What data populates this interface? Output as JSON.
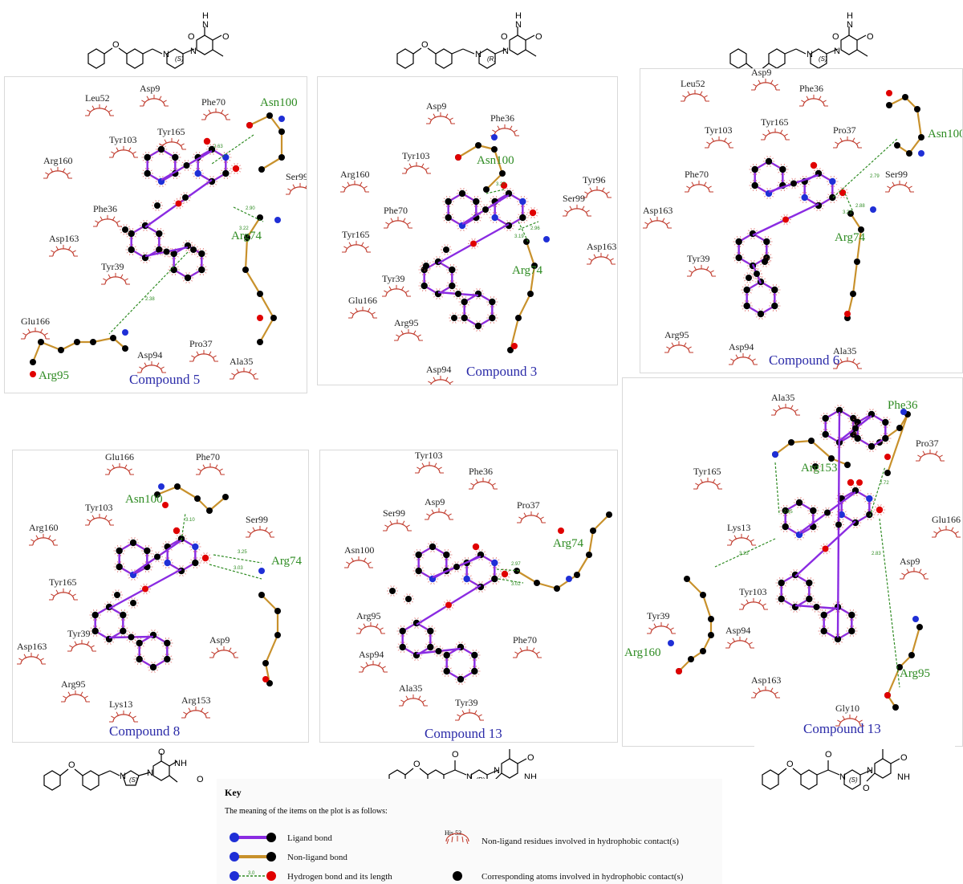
{
  "structures": [
    {
      "stereo": "(S)",
      "atoms": [
        "H",
        "N",
        "O",
        "O",
        "N",
        "N",
        "O"
      ]
    },
    {
      "stereo": "(R)",
      "atoms": [
        "H",
        "N",
        "O",
        "O",
        "N",
        "N",
        "O"
      ]
    },
    {
      "stereo": "(S)",
      "atoms": [
        "H",
        "N",
        "O",
        "O",
        "N",
        "N",
        "O"
      ]
    },
    {
      "stereo": "(S)",
      "atoms": [
        "O",
        "N",
        "N",
        "NH",
        "O",
        "O"
      ]
    },
    {
      "stereo": "(R)",
      "atoms": [
        "O",
        "N",
        "N",
        "NH",
        "O",
        "O",
        "O"
      ]
    },
    {
      "stereo": "(S)",
      "atoms": [
        "O",
        "N",
        "N",
        "NH",
        "O",
        "O",
        "O"
      ]
    }
  ],
  "panels": [
    {
      "compound": "Compound 5",
      "hbond_residues": [
        "Asn100",
        "Arg74",
        "Arg95"
      ],
      "hydrophobic_residues": [
        "Leu52",
        "Asp9",
        "Phe70",
        "Tyr103",
        "Tyr165",
        "Arg160",
        "Ser99",
        "Phe36",
        "Asp163",
        "Tyr39",
        "Glu166",
        "Pro37",
        "Asp94",
        "Ala35"
      ],
      "distances": [
        "2.63",
        "2.90",
        "3.22",
        "2.38"
      ]
    },
    {
      "compound": "Compound 3",
      "hbond_residues": [
        "Asn100",
        "Arg74"
      ],
      "hydrophobic_residues": [
        "Asp9",
        "Phe36",
        "Tyr103",
        "Arg160",
        "Tyr96",
        "Ser99",
        "Phe70",
        "Tyr165",
        "Asp163",
        "Tyr39",
        "Glu166",
        "Arg95",
        "Asp94"
      ],
      "distances": [
        "3.27",
        "2.96",
        "3.19"
      ]
    },
    {
      "compound": "Compound 6",
      "hbond_residues": [
        "Asn100",
        "Arg74"
      ],
      "hydrophobic_residues": [
        "Asp9",
        "Leu52",
        "Phe36",
        "Tyr103",
        "Tyr165",
        "Pro37",
        "Phe70",
        "Ser99",
        "Asp163",
        "Tyr39",
        "Arg95",
        "Asp94",
        "Ala35"
      ],
      "distances": [
        "2.79",
        "2.88",
        "3.21"
      ]
    },
    {
      "compound": "Compound 8",
      "hbond_residues": [
        "Asn100",
        "Arg74"
      ],
      "hydrophobic_residues": [
        "Glu166",
        "Phe70",
        "Tyr103",
        "Ser99",
        "Arg160",
        "Tyr165",
        "Tyr39",
        "Asp9",
        "Asp163",
        "Arg95",
        "Lys13",
        "Arg153"
      ],
      "distances": [
        "3.10",
        "3.25",
        "3.03"
      ]
    },
    {
      "compound": "Compound 13",
      "hbond_residues": [
        "Arg74"
      ],
      "hydrophobic_residues": [
        "Tyr103",
        "Phe36",
        "Asp9",
        "Pro37",
        "Ser99",
        "Asn100",
        "Arg95",
        "Phe70",
        "Asp94",
        "Ala35",
        "Tyr39"
      ],
      "distances": [
        "2.97",
        "3.02"
      ]
    },
    {
      "compound": "Compound 13",
      "hbond_residues": [
        "Phe36",
        "Arg153",
        "Arg160",
        "Arg95"
      ],
      "hydrophobic_residues": [
        "Ala35",
        "Pro37",
        "Tyr165",
        "Lys13",
        "Glu166",
        "Tyr39",
        "Tyr103",
        "Asp9",
        "Asp94",
        "Asp163",
        "Gly10"
      ],
      "distances": [
        "2.95",
        "3.23",
        "2.72",
        "2.83"
      ]
    }
  ],
  "key": {
    "title": "Key",
    "intro": "The meaning of the items on the plot is as follows:",
    "items": [
      {
        "label": "Ligand bond"
      },
      {
        "label": "Non-ligand bond"
      },
      {
        "label": "Hydrogen bond and its length",
        "sample": "3.0"
      },
      {
        "label": "Non-ligand residues involved in hydrophobic contact(s)",
        "sample": "His 53"
      },
      {
        "label": "Corresponding atoms involved in hydrophobic contact(s)"
      }
    ]
  },
  "colors": {
    "ligand_bond": "#8a2be2",
    "nonligand_bond": "#c8912c",
    "carbon": "#000000",
    "oxygen": "#e00000",
    "nitrogen": "#1f2fd6",
    "hbond": "#2e8b22",
    "residue_arc": "#c0392b",
    "compound_label": "#2a2aa8"
  }
}
